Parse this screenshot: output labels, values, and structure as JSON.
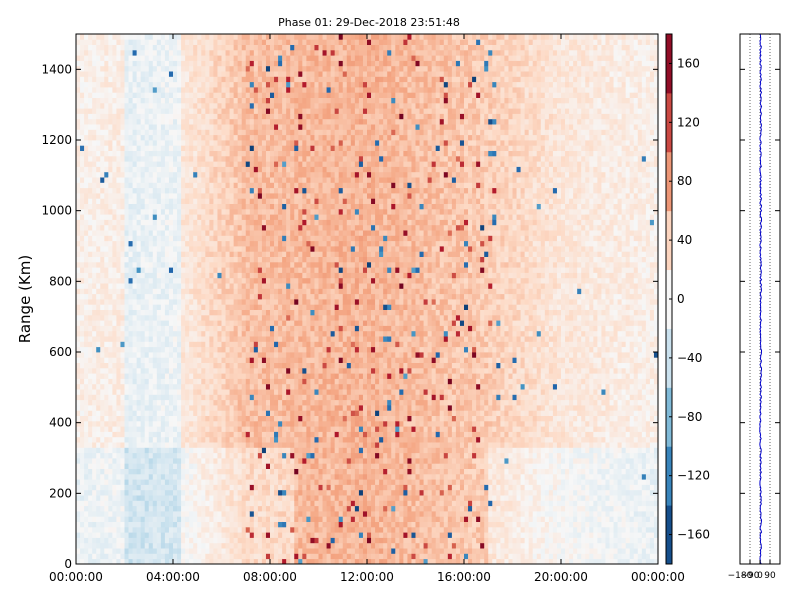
{
  "chart_data": [
    {
      "type": "heatmap",
      "title": "Phase 01: 29-Dec-2018 23:51:48",
      "xlabel": "",
      "ylabel": "Range (Km)",
      "x_ticks": [
        "00:00:00",
        "04:00:00",
        "08:00:00",
        "12:00:00",
        "16:00:00",
        "20:00:00",
        "00:00:00"
      ],
      "x_range_hours": [
        0,
        24
      ],
      "y_ticks": [
        0,
        200,
        400,
        600,
        800,
        1000,
        1200,
        1400
      ],
      "ylim": [
        0,
        1500
      ],
      "time_step_hours": 0.1667,
      "range_step_km": 15,
      "colorscale": "RdBu_r",
      "clim": [
        -180,
        180
      ],
      "colorbar_ticks": [
        "−160",
        "−120",
        "−80",
        "−40",
        "0",
        "40",
        "80",
        "120",
        "160"
      ],
      "colorbar_values": [
        -160,
        -120,
        -80,
        -40,
        0,
        40,
        80,
        120,
        160
      ],
      "value_description": "phase (degrees); predominantly weakly positive, strongest positive and scattered outliers between ~07:00 and ~17:00, near-zero/negative at 02:00-04:00 and in the lower ranges",
      "profile_hours": [
        [
          0,
          10
        ],
        [
          4.5,
          22
        ],
        [
          7,
          55
        ],
        [
          12,
          62
        ],
        [
          16.5,
          48
        ],
        [
          20,
          22
        ],
        [
          24,
          10
        ]
      ]
    },
    {
      "type": "line",
      "title": "",
      "xlabel": "",
      "ylabel": "",
      "xlim": [
        -180,
        180
      ],
      "ylim": [
        0,
        1500
      ],
      "x_ticks": [
        "−180",
        "−90",
        "0",
        "90"
      ],
      "x_tick_values": [
        -180,
        -90,
        0,
        90
      ],
      "grid": "vertical dotted lines at x ticks",
      "series_color": "#0000cc",
      "series": [
        {
          "range_km": [
            0,
            100,
            200,
            300,
            400,
            500,
            600,
            700,
            800,
            900,
            1000,
            1100,
            1200,
            1300,
            1400,
            1500
          ],
          "phase_deg": [
            5,
            8,
            4,
            6,
            2,
            7,
            9,
            5,
            8,
            6,
            7,
            5,
            6,
            8,
            4,
            6
          ]
        }
      ]
    }
  ]
}
